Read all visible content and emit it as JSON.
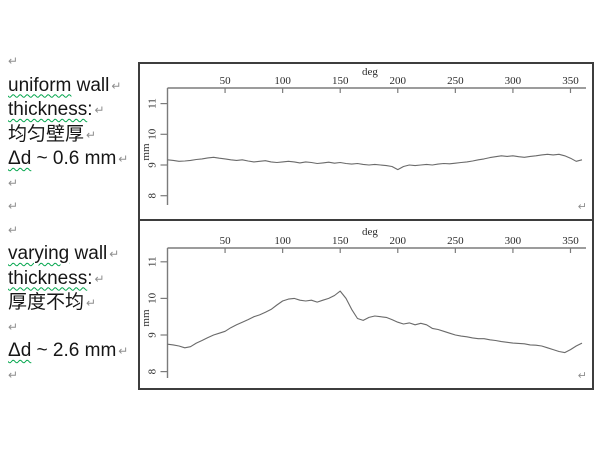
{
  "colors": {
    "text": "#161616",
    "spellcheck_squiggle": "#00a44a",
    "paragraph_mark": "#8f8f8f",
    "chart_border": "#3d3d3d",
    "axis": "#7b7b7b",
    "data_line": "#6a6a6a",
    "background": "#ffffff"
  },
  "paragraph_mark_glyph": "↵",
  "left_column": {
    "items": [
      {
        "name": "paragraph-mark",
        "type": "mark"
      },
      {
        "name": "uniform-wall-line",
        "type": "text",
        "segments": [
          {
            "t": "uniform",
            "sq": true
          },
          {
            "t": " wall",
            "sq": false
          }
        ]
      },
      {
        "name": "thickness-line-1",
        "type": "text",
        "segments": [
          {
            "t": "thickness",
            "sq": true
          },
          {
            "t": ":",
            "sq": false
          }
        ]
      },
      {
        "name": "chinese-uniform-line",
        "type": "text",
        "segments": [
          {
            "t": "均匀壁厚",
            "sq": false
          }
        ]
      },
      {
        "name": "delta-d-uniform-line",
        "type": "text",
        "segments": [
          {
            "t": "Δd",
            "sq": true
          },
          {
            "t": " ~ 0.6 mm",
            "sq": false
          }
        ]
      },
      {
        "name": "paragraph-mark",
        "type": "mark"
      },
      {
        "name": "paragraph-mark",
        "type": "mark"
      },
      {
        "name": "paragraph-mark",
        "type": "mark"
      },
      {
        "name": "varying-wall-line",
        "type": "text",
        "segments": [
          {
            "t": "varying",
            "sq": true
          },
          {
            "t": " wall",
            "sq": false
          }
        ]
      },
      {
        "name": "thickness-line-2",
        "type": "text",
        "segments": [
          {
            "t": "thickness",
            "sq": true
          },
          {
            "t": ":",
            "sq": false
          }
        ]
      },
      {
        "name": "chinese-varying-line",
        "type": "text",
        "segments": [
          {
            "t": "厚度不均",
            "sq": false
          }
        ]
      },
      {
        "name": "paragraph-mark",
        "type": "mark"
      },
      {
        "name": "delta-d-varying-line",
        "type": "text",
        "segments": [
          {
            "t": "Δd",
            "sq": true
          },
          {
            "t": " ~ 2.6 mm",
            "sq": false
          }
        ]
      },
      {
        "name": "paragraph-mark",
        "type": "mark"
      }
    ]
  },
  "chart_data": [
    {
      "type": "line",
      "title": "",
      "xlabel": "deg",
      "ylabel": "mm",
      "x_ticks": [
        50,
        100,
        150,
        200,
        250,
        300,
        350
      ],
      "y_ticks": [
        8,
        9,
        10,
        11
      ],
      "xlim": [
        0,
        362
      ],
      "ylim": [
        7.5,
        11.5
      ],
      "grid": false,
      "legend": null,
      "corner_mark": "↵",
      "x": [
        0,
        5,
        10,
        15,
        20,
        25,
        30,
        35,
        40,
        45,
        50,
        55,
        60,
        65,
        70,
        75,
        80,
        85,
        90,
        95,
        100,
        105,
        110,
        115,
        120,
        125,
        130,
        135,
        140,
        145,
        150,
        155,
        160,
        165,
        170,
        175,
        180,
        185,
        190,
        195,
        200,
        205,
        210,
        215,
        220,
        225,
        230,
        235,
        240,
        245,
        250,
        255,
        260,
        265,
        270,
        275,
        280,
        285,
        290,
        295,
        300,
        305,
        310,
        315,
        320,
        325,
        330,
        335,
        340,
        345,
        350,
        355,
        360
      ],
      "values": [
        9.17,
        9.15,
        9.12,
        9.13,
        9.15,
        9.18,
        9.2,
        9.23,
        9.25,
        9.22,
        9.2,
        9.17,
        9.15,
        9.17,
        9.13,
        9.1,
        9.12,
        9.14,
        9.1,
        9.08,
        9.1,
        9.12,
        9.1,
        9.07,
        9.1,
        9.08,
        9.05,
        9.07,
        9.09,
        9.06,
        9.08,
        9.05,
        9.03,
        9.05,
        9.02,
        9.0,
        9.02,
        9.0,
        8.98,
        8.95,
        8.85,
        8.95,
        9.0,
        8.98,
        9.0,
        9.02,
        9.0,
        9.03,
        9.05,
        9.04,
        9.06,
        9.08,
        9.1,
        9.13,
        9.17,
        9.2,
        9.24,
        9.27,
        9.3,
        9.28,
        9.3,
        9.27,
        9.25,
        9.28,
        9.3,
        9.33,
        9.35,
        9.33,
        9.35,
        9.3,
        9.22,
        9.12,
        9.17
      ]
    },
    {
      "type": "line",
      "title": "",
      "xlabel": "deg",
      "ylabel": "mm",
      "x_ticks": [
        50,
        100,
        150,
        200,
        250,
        300,
        350
      ],
      "y_ticks": [
        8,
        9,
        10,
        11
      ],
      "xlim": [
        0,
        362
      ],
      "ylim": [
        7.5,
        11.5
      ],
      "grid": false,
      "legend": null,
      "corner_mark": "↵",
      "x": [
        0,
        5,
        10,
        15,
        20,
        25,
        30,
        35,
        40,
        45,
        50,
        55,
        60,
        65,
        70,
        75,
        80,
        85,
        90,
        95,
        100,
        105,
        110,
        115,
        120,
        125,
        130,
        135,
        140,
        145,
        150,
        155,
        160,
        165,
        170,
        175,
        180,
        185,
        190,
        195,
        200,
        205,
        210,
        215,
        220,
        225,
        230,
        235,
        240,
        245,
        250,
        255,
        260,
        265,
        270,
        275,
        280,
        285,
        290,
        295,
        300,
        305,
        310,
        315,
        320,
        325,
        330,
        335,
        340,
        345,
        350,
        355,
        360
      ],
      "values": [
        8.75,
        8.73,
        8.7,
        8.65,
        8.68,
        8.78,
        8.85,
        8.93,
        9.0,
        9.05,
        9.1,
        9.2,
        9.28,
        9.35,
        9.42,
        9.5,
        9.55,
        9.62,
        9.7,
        9.82,
        9.93,
        9.98,
        10.0,
        9.95,
        9.93,
        9.95,
        9.9,
        9.95,
        10.0,
        10.08,
        10.2,
        10.0,
        9.7,
        9.45,
        9.4,
        9.48,
        9.52,
        9.5,
        9.48,
        9.42,
        9.35,
        9.3,
        9.33,
        9.28,
        9.32,
        9.28,
        9.18,
        9.15,
        9.1,
        9.05,
        9.0,
        8.97,
        8.95,
        8.92,
        8.9,
        8.9,
        8.87,
        8.85,
        8.82,
        8.8,
        8.78,
        8.77,
        8.76,
        8.73,
        8.72,
        8.7,
        8.65,
        8.6,
        8.55,
        8.52,
        8.6,
        8.7,
        8.78
      ]
    }
  ]
}
